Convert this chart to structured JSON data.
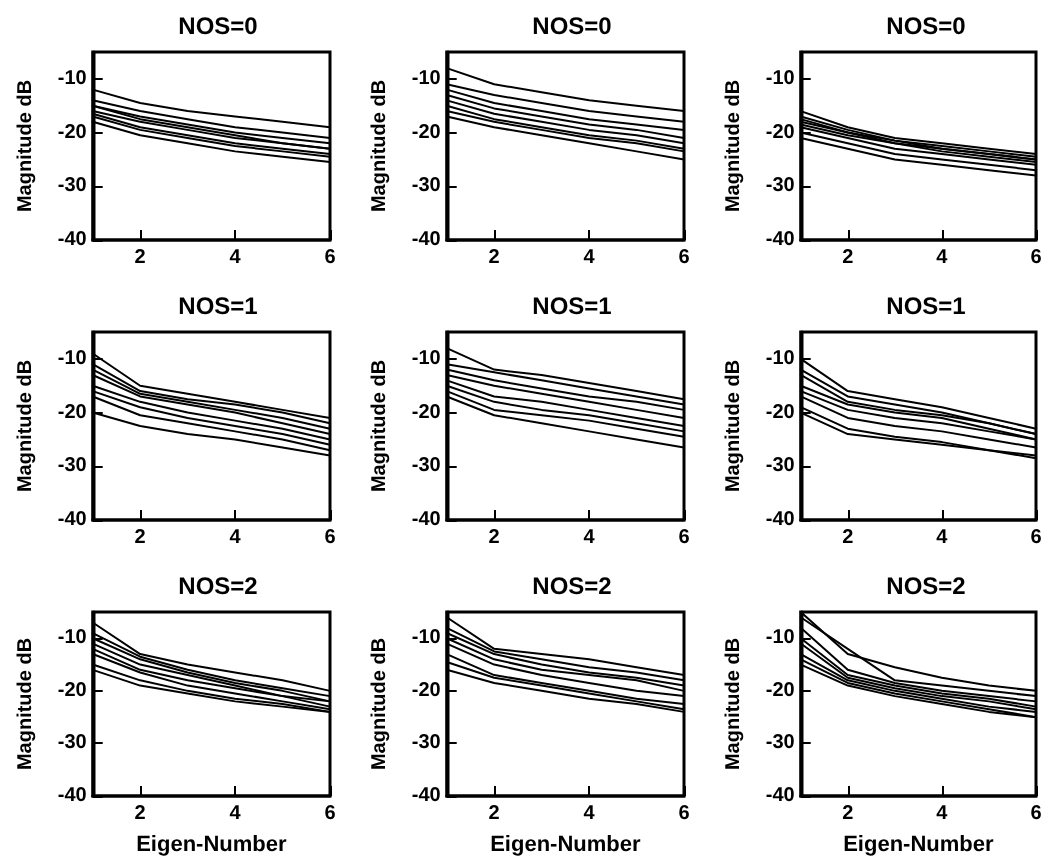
{
  "chart_data": [
    {
      "type": "line",
      "title": "NOS=0",
      "ylabel": "Magnitude dB",
      "x": [
        1,
        2,
        3,
        4,
        5,
        6
      ],
      "xlim": [
        1,
        6
      ],
      "xticks": [
        2,
        4,
        6
      ],
      "ylim": [
        -40,
        -5
      ],
      "yticks": [
        -40,
        -30,
        -20,
        -10
      ],
      "marker": "none",
      "line_style": "solid",
      "grid": false,
      "series": [
        {
          "color": "#000000",
          "values": [
            -12,
            -14.5,
            -16,
            -17,
            -18,
            -19
          ]
        },
        {
          "color": "#000000",
          "values": [
            -14,
            -16,
            -17.5,
            -19,
            -20,
            -21
          ]
        },
        {
          "color": "#000000",
          "values": [
            -15,
            -17,
            -18.5,
            -20,
            -21,
            -22
          ]
        },
        {
          "color": "#000000",
          "values": [
            -16,
            -18,
            -19.5,
            -21,
            -22,
            -23
          ]
        },
        {
          "color": "#000000",
          "values": [
            -16.5,
            -19,
            -20.5,
            -22,
            -23,
            -24
          ]
        },
        {
          "color": "#000000",
          "values": [
            -17,
            -19.5,
            -21,
            -22.5,
            -23.5,
            -24.5
          ]
        },
        {
          "color": "#000000",
          "values": [
            -18,
            -20.5,
            -22,
            -23.5,
            -24.5,
            -25.5
          ]
        },
        {
          "color": "#000000",
          "values": [
            -15,
            -17.5,
            -19,
            -20.5,
            -22,
            -23
          ]
        }
      ]
    },
    {
      "type": "line",
      "title": "NOS=0",
      "ylabel": "Magnitude dB",
      "x": [
        1,
        2,
        3,
        4,
        5,
        6
      ],
      "xlim": [
        1,
        6
      ],
      "xticks": [
        2,
        4,
        6
      ],
      "ylim": [
        -40,
        -5
      ],
      "yticks": [
        -40,
        -30,
        -20,
        -10
      ],
      "marker": "none",
      "line_style": "solid",
      "grid": false,
      "series": [
        {
          "color": "#000000",
          "values": [
            -8,
            -11,
            -12.5,
            -14,
            -15,
            -16
          ]
        },
        {
          "color": "#000000",
          "values": [
            -11,
            -13,
            -14.5,
            -16,
            -17,
            -18
          ]
        },
        {
          "color": "#000000",
          "values": [
            -12,
            -14.5,
            -16,
            -17.5,
            -18.5,
            -19.5
          ]
        },
        {
          "color": "#000000",
          "values": [
            -13,
            -15.5,
            -17,
            -18.5,
            -19.5,
            -21
          ]
        },
        {
          "color": "#000000",
          "values": [
            -14,
            -16.5,
            -18,
            -19.5,
            -20.5,
            -22
          ]
        },
        {
          "color": "#000000",
          "values": [
            -15,
            -17.5,
            -19,
            -20.5,
            -21.5,
            -23
          ]
        },
        {
          "color": "#000000",
          "values": [
            -16,
            -18,
            -19.5,
            -21,
            -22,
            -23.5
          ]
        },
        {
          "color": "#000000",
          "values": [
            -17,
            -19,
            -20.5,
            -22,
            -23.5,
            -25
          ]
        }
      ]
    },
    {
      "type": "line",
      "title": "NOS=0",
      "ylabel": "Magnitude dB",
      "x": [
        1,
        2,
        3,
        4,
        5,
        6
      ],
      "xlim": [
        1,
        6
      ],
      "xticks": [
        2,
        4,
        6
      ],
      "ylim": [
        -40,
        -5
      ],
      "yticks": [
        -40,
        -30,
        -20,
        -10
      ],
      "marker": "none",
      "line_style": "solid",
      "grid": false,
      "series": [
        {
          "color": "#000000",
          "values": [
            -16,
            -19,
            -21,
            -22,
            -23,
            -24
          ]
        },
        {
          "color": "#000000",
          "values": [
            -17,
            -19.5,
            -21.5,
            -23,
            -24,
            -25
          ]
        },
        {
          "color": "#000000",
          "values": [
            -18,
            -20,
            -22,
            -23.5,
            -24.5,
            -25.5
          ]
        },
        {
          "color": "#000000",
          "values": [
            -19,
            -21,
            -23,
            -24,
            -25,
            -26
          ]
        },
        {
          "color": "#000000",
          "values": [
            -20,
            -22,
            -24,
            -25,
            -26,
            -27
          ]
        },
        {
          "color": "#000000",
          "values": [
            -21,
            -23,
            -25,
            -26,
            -27,
            -28
          ]
        },
        {
          "color": "#000000",
          "values": [
            -18.5,
            -20.5,
            -22,
            -23,
            -24,
            -25
          ]
        },
        {
          "color": "#000000",
          "values": [
            -17.5,
            -20,
            -21.5,
            -22.5,
            -23.5,
            -24.5
          ]
        }
      ]
    },
    {
      "type": "line",
      "title": "NOS=1",
      "ylabel": "Magnitude dB",
      "x": [
        1,
        2,
        3,
        4,
        5,
        6
      ],
      "xlim": [
        1,
        6
      ],
      "xticks": [
        2,
        4,
        6
      ],
      "ylim": [
        -40,
        -5
      ],
      "yticks": [
        -40,
        -30,
        -20,
        -10
      ],
      "marker": "none",
      "line_style": "solid",
      "grid": false,
      "series": [
        {
          "color": "#000000",
          "values": [
            -9,
            -15,
            -16.5,
            -18,
            -19.5,
            -21
          ]
        },
        {
          "color": "#000000",
          "values": [
            -11,
            -16,
            -17.5,
            -18.5,
            -20,
            -22
          ]
        },
        {
          "color": "#000000",
          "values": [
            -12,
            -16.5,
            -18,
            -19.5,
            -21,
            -23
          ]
        },
        {
          "color": "#000000",
          "values": [
            -13,
            -17,
            -18.5,
            -20,
            -22,
            -24
          ]
        },
        {
          "color": "#000000",
          "values": [
            -15,
            -18,
            -20,
            -21.5,
            -23,
            -25
          ]
        },
        {
          "color": "#000000",
          "values": [
            -16,
            -19,
            -21,
            -22.5,
            -24,
            -26
          ]
        },
        {
          "color": "#000000",
          "values": [
            -17,
            -20.5,
            -22,
            -23.5,
            -25,
            -27
          ]
        },
        {
          "color": "#000000",
          "values": [
            -20,
            -22.5,
            -24,
            -25,
            -26.5,
            -28
          ]
        }
      ]
    },
    {
      "type": "line",
      "title": "NOS=1",
      "ylabel": "Magnitude dB",
      "x": [
        1,
        2,
        3,
        4,
        5,
        6
      ],
      "xlim": [
        1,
        6
      ],
      "xticks": [
        2,
        4,
        6
      ],
      "ylim": [
        -40,
        -5
      ],
      "yticks": [
        -40,
        -30,
        -20,
        -10
      ],
      "marker": "none",
      "line_style": "solid",
      "grid": false,
      "series": [
        {
          "color": "#000000",
          "values": [
            -8,
            -12,
            -13,
            -14.5,
            -16,
            -17.5
          ]
        },
        {
          "color": "#000000",
          "values": [
            -11,
            -12.5,
            -14,
            -15.5,
            -17,
            -18.5
          ]
        },
        {
          "color": "#000000",
          "values": [
            -12,
            -14,
            -15.5,
            -17,
            -18,
            -19.5
          ]
        },
        {
          "color": "#000000",
          "values": [
            -13,
            -15,
            -16.5,
            -18,
            -19.5,
            -21
          ]
        },
        {
          "color": "#000000",
          "values": [
            -14,
            -17,
            -18,
            -19.5,
            -21,
            -22.5
          ]
        },
        {
          "color": "#000000",
          "values": [
            -15,
            -18,
            -19.5,
            -20.5,
            -22,
            -23.5
          ]
        },
        {
          "color": "#000000",
          "values": [
            -16,
            -19.5,
            -20.5,
            -21.5,
            -23,
            -24.5
          ]
        },
        {
          "color": "#000000",
          "values": [
            -17,
            -20.5,
            -22,
            -23.5,
            -25,
            -26.5
          ]
        }
      ]
    },
    {
      "type": "line",
      "title": "NOS=1",
      "ylabel": "Magnitude dB",
      "x": [
        1,
        2,
        3,
        4,
        5,
        6
      ],
      "xlim": [
        1,
        6
      ],
      "xticks": [
        2,
        4,
        6
      ],
      "ylim": [
        -40,
        -5
      ],
      "yticks": [
        -40,
        -30,
        -20,
        -10
      ],
      "marker": "none",
      "line_style": "solid",
      "grid": false,
      "series": [
        {
          "color": "#000000",
          "values": [
            -10,
            -16,
            -17.5,
            -19,
            -21,
            -23
          ]
        },
        {
          "color": "#000000",
          "values": [
            -12,
            -17,
            -18.5,
            -20,
            -22,
            -24
          ]
        },
        {
          "color": "#000000",
          "values": [
            -13,
            -18,
            -19.5,
            -20.5,
            -22,
            -24
          ]
        },
        {
          "color": "#000000",
          "values": [
            -15,
            -18.5,
            -20,
            -21,
            -23,
            -25
          ]
        },
        {
          "color": "#000000",
          "values": [
            -16,
            -19.5,
            -21,
            -22,
            -23.5,
            -25
          ]
        },
        {
          "color": "#000000",
          "values": [
            -17,
            -21,
            -22.5,
            -23.5,
            -25,
            -26.5
          ]
        },
        {
          "color": "#000000",
          "values": [
            -19,
            -23,
            -24.5,
            -25.5,
            -27,
            -28
          ]
        },
        {
          "color": "#000000",
          "values": [
            -20,
            -24,
            -25,
            -26,
            -27,
            -28.5
          ]
        }
      ]
    },
    {
      "type": "line",
      "title": "NOS=2",
      "xlabel": "Eigen-Number",
      "ylabel": "Magnitude dB",
      "x": [
        1,
        2,
        3,
        4,
        5,
        6
      ],
      "xlim": [
        1,
        6
      ],
      "xticks": [
        2,
        4,
        6
      ],
      "ylim": [
        -40,
        -5
      ],
      "yticks": [
        -40,
        -30,
        -20,
        -10
      ],
      "marker": "none",
      "line_style": "solid",
      "grid": false,
      "series": [
        {
          "color": "#000000",
          "values": [
            -7,
            -13,
            -15,
            -16.5,
            -18,
            -20
          ]
        },
        {
          "color": "#000000",
          "values": [
            -9,
            -13.5,
            -16,
            -18,
            -19.5,
            -21
          ]
        },
        {
          "color": "#000000",
          "values": [
            -10,
            -14,
            -16.5,
            -18.5,
            -20,
            -22
          ]
        },
        {
          "color": "#000000",
          "values": [
            -11,
            -15,
            -17,
            -19,
            -21,
            -22
          ]
        },
        {
          "color": "#000000",
          "values": [
            -12,
            -16,
            -18,
            -19.5,
            -21,
            -23
          ]
        },
        {
          "color": "#000000",
          "values": [
            -13,
            -16.5,
            -19,
            -20.5,
            -22,
            -23.5
          ]
        },
        {
          "color": "#000000",
          "values": [
            -15,
            -18,
            -20,
            -21.5,
            -22.5,
            -24
          ]
        },
        {
          "color": "#000000",
          "values": [
            -16,
            -19,
            -20.5,
            -22,
            -23,
            -24
          ]
        }
      ]
    },
    {
      "type": "line",
      "title": "NOS=2",
      "xlabel": "Eigen-Number",
      "ylabel": "Magnitude dB",
      "x": [
        1,
        2,
        3,
        4,
        5,
        6
      ],
      "xlim": [
        1,
        6
      ],
      "xticks": [
        2,
        4,
        6
      ],
      "ylim": [
        -40,
        -5
      ],
      "yticks": [
        -40,
        -30,
        -20,
        -10
      ],
      "marker": "none",
      "line_style": "solid",
      "grid": false,
      "series": [
        {
          "color": "#000000",
          "values": [
            -6,
            -12,
            -13,
            -14,
            -15.5,
            -17
          ]
        },
        {
          "color": "#000000",
          "values": [
            -8,
            -12.5,
            -14,
            -15.5,
            -16.5,
            -18
          ]
        },
        {
          "color": "#000000",
          "values": [
            -9,
            -13,
            -15,
            -16.5,
            -17.5,
            -19
          ]
        },
        {
          "color": "#000000",
          "values": [
            -10,
            -14,
            -16,
            -17,
            -18,
            -20
          ]
        },
        {
          "color": "#000000",
          "values": [
            -11,
            -15,
            -17,
            -18.5,
            -20,
            -21
          ]
        },
        {
          "color": "#000000",
          "values": [
            -13,
            -17,
            -18.5,
            -20,
            -21.5,
            -22.5
          ]
        },
        {
          "color": "#000000",
          "values": [
            -14.5,
            -17.5,
            -19,
            -20.5,
            -22,
            -23.5
          ]
        },
        {
          "color": "#000000",
          "values": [
            -16,
            -18.5,
            -20,
            -21.5,
            -22.5,
            -24
          ]
        }
      ]
    },
    {
      "type": "line",
      "title": "NOS=2",
      "xlabel": "Eigen-Number",
      "ylabel": "Magnitude dB",
      "x": [
        1,
        2,
        3,
        4,
        5,
        6
      ],
      "xlim": [
        1,
        6
      ],
      "xticks": [
        2,
        4,
        6
      ],
      "ylim": [
        -40,
        -5
      ],
      "yticks": [
        -40,
        -30,
        -20,
        -10
      ],
      "marker": "none",
      "line_style": "solid",
      "grid": false,
      "series": [
        {
          "color": "#000000",
          "values": [
            -5,
            -13,
            -15.5,
            -17.5,
            -19,
            -20
          ]
        },
        {
          "color": "#000000",
          "values": [
            -6,
            -12,
            -18,
            -19,
            -20,
            -21
          ]
        },
        {
          "color": "#000000",
          "values": [
            -8,
            -16,
            -18.5,
            -20,
            -21,
            -22
          ]
        },
        {
          "color": "#000000",
          "values": [
            -10,
            -17,
            -19,
            -20.5,
            -21.5,
            -23
          ]
        },
        {
          "color": "#000000",
          "values": [
            -11,
            -17.5,
            -19.5,
            -21,
            -22,
            -23.5
          ]
        },
        {
          "color": "#000000",
          "values": [
            -13,
            -18,
            -20,
            -21.5,
            -23,
            -24
          ]
        },
        {
          "color": "#000000",
          "values": [
            -14,
            -18.5,
            -20.5,
            -22,
            -23.5,
            -25
          ]
        },
        {
          "color": "#000000",
          "values": [
            -15,
            -19,
            -21,
            -22.5,
            -24,
            -25
          ]
        }
      ]
    }
  ]
}
